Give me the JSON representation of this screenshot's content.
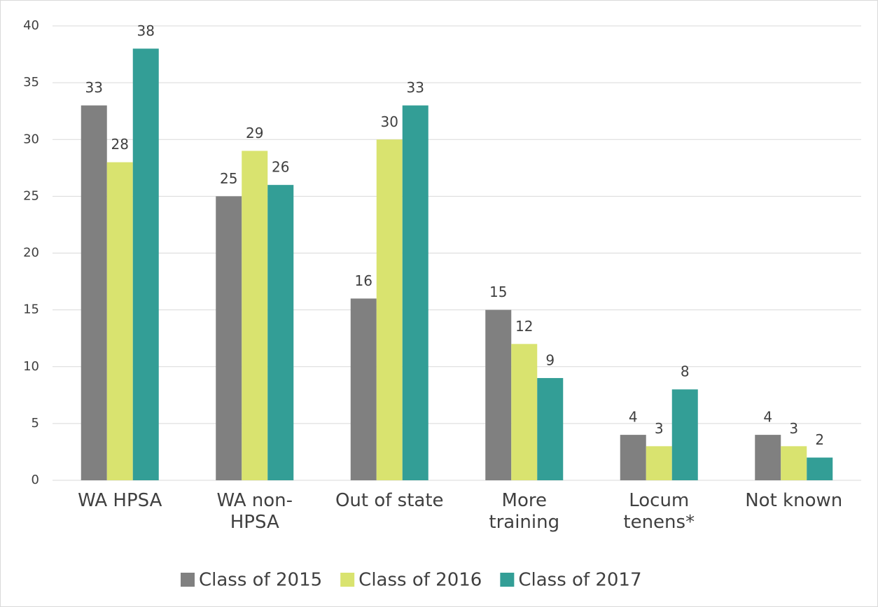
{
  "chart_data": {
    "type": "bar",
    "categories": [
      "WA HPSA",
      "WA non-HPSA",
      "Out of state",
      "More training",
      "Locum tenens*",
      "Not known"
    ],
    "series": [
      {
        "name": "Class of 2015",
        "color": "#808080",
        "values": [
          33,
          25,
          16,
          15,
          4,
          4
        ]
      },
      {
        "name": "Class of 2016",
        "color": "#d9e36f",
        "values": [
          28,
          29,
          30,
          12,
          3,
          3
        ]
      },
      {
        "name": "Class of 2017",
        "color": "#339e96",
        "values": [
          38,
          26,
          33,
          9,
          8,
          2
        ]
      }
    ],
    "ylim": [
      0,
      40
    ],
    "yticks": [
      0,
      5,
      10,
      15,
      20,
      25,
      30,
      35,
      40
    ],
    "grid": true,
    "legend": "bottom"
  }
}
